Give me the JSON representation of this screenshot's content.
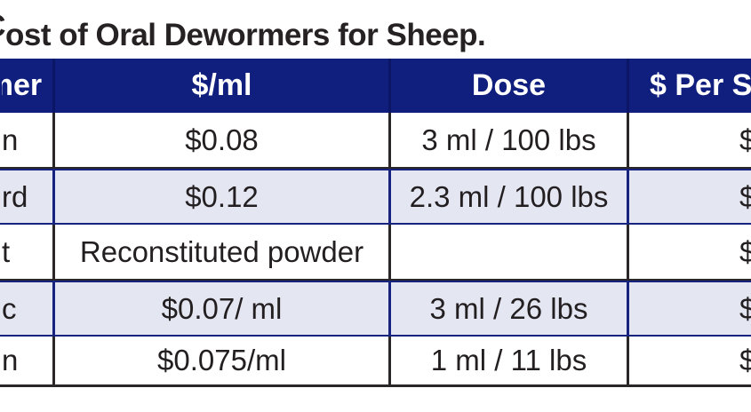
{
  "caption": {
    "clipped_first_letter": "C",
    "visible_text": "ost of Oral Dewormers for Sheep."
  },
  "table": {
    "header": {
      "dewormer": {
        "clipped_first_letter": "m",
        "visible_text": "er"
      },
      "price_per_ml": "$/ml",
      "dose": "Dose",
      "per_sheep": "$ Per S"
    },
    "rows": [
      {
        "dewormer_fragment": "n",
        "price_per_ml": "$0.08",
        "dose": "3 ml / 100 lbs",
        "per_sheep_fragment": "$"
      },
      {
        "dewormer_fragment": "rd",
        "price_per_ml": "$0.12",
        "dose": "2.3 ml / 100 lbs",
        "per_sheep_fragment": "$"
      },
      {
        "dewormer_fragment": "t",
        "price_per_ml": "Reconstituted powder",
        "dose": "",
        "per_sheep_fragment": "$"
      },
      {
        "dewormer_fragment": "c",
        "price_per_ml": "$0.07/ ml",
        "dose": "3 ml / 26 lbs",
        "per_sheep_fragment": "$"
      },
      {
        "dewormer_fragment": "n",
        "price_per_ml": "$0.075/ml",
        "dose": "1 ml / 11 lbs",
        "per_sheep_fragment": "$"
      }
    ]
  },
  "colors": {
    "header_bg": "#101f7e",
    "header_text": "#ffffff",
    "shaded_row_bg": "#e4e6f2",
    "shaded_row_border": "#16247f",
    "plain_row_border": "#2b2728",
    "body_text": "#231f20"
  },
  "chart_data": {
    "type": "table",
    "title": "Cost of Oral Dewormers for Sheep.",
    "columns": [
      "…er",
      "$/ml",
      "Dose",
      "$ Per S…"
    ],
    "rows": [
      [
        "…n",
        "$0.08",
        "3 ml / 100 lbs",
        "$…"
      ],
      [
        "…rd",
        "$0.12",
        "2.3 ml / 100 lbs",
        "$…"
      ],
      [
        "…t",
        "Reconstituted powder",
        "",
        "$…"
      ],
      [
        "…c",
        "$0.07/ ml",
        "3 ml / 26 lbs",
        "$…"
      ],
      [
        "…n",
        "$0.075/ml",
        "1 ml / 11 lbs",
        "$…"
      ]
    ],
    "layout_hints": {
      "header_fill": "navy",
      "alternating_rows_shaded": [
        2,
        4
      ],
      "left_and_right_columns_cropped_by_image_edge": true
    }
  }
}
